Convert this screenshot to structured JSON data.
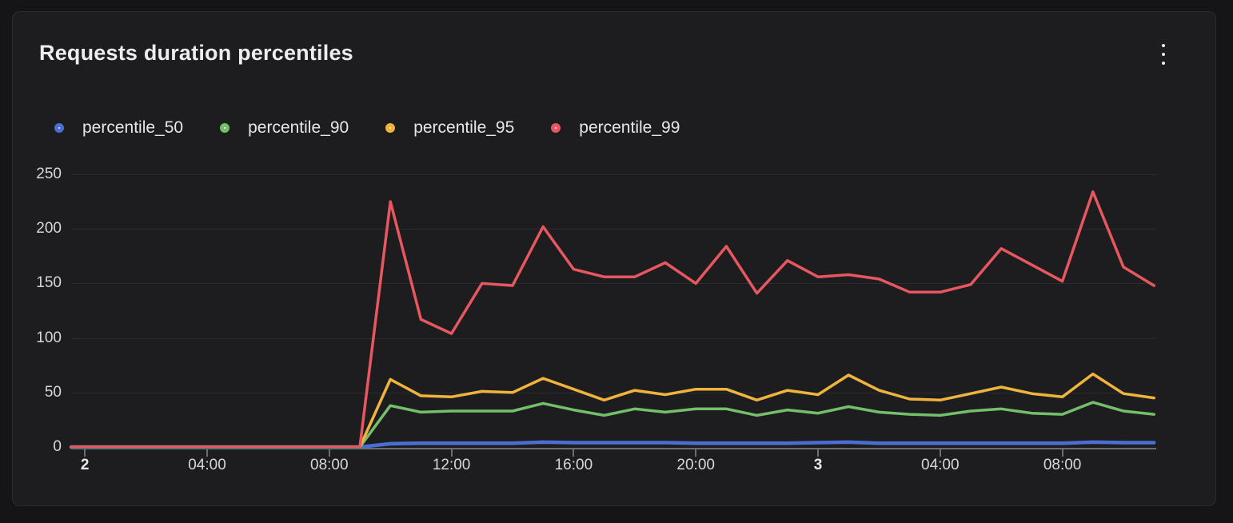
{
  "panel": {
    "title": "Requests duration percentiles",
    "menu_icon": "kebab-vertical-icon"
  },
  "legend": {
    "items": [
      {
        "label": "percentile_50",
        "color": "#4a6fd4"
      },
      {
        "label": "percentile_90",
        "color": "#74bf69"
      },
      {
        "label": "percentile_95",
        "color": "#f0b43c"
      },
      {
        "label": "percentile_99",
        "color": "#e8575f"
      }
    ]
  },
  "chart_data": {
    "type": "line",
    "title": "Requests duration percentiles",
    "legend_position": "top",
    "grid": "horizontal",
    "x_axis": {
      "unit": "time",
      "start": "day 2 00:00",
      "end": "day 3 11:00",
      "sample_interval_hours": 1,
      "ticks": [
        {
          "hour": 0,
          "label": "2",
          "bold": true
        },
        {
          "hour": 4,
          "label": "04:00",
          "bold": false
        },
        {
          "hour": 8,
          "label": "08:00",
          "bold": false
        },
        {
          "hour": 12,
          "label": "12:00",
          "bold": false
        },
        {
          "hour": 16,
          "label": "16:00",
          "bold": false
        },
        {
          "hour": 20,
          "label": "20:00",
          "bold": false
        },
        {
          "hour": 24,
          "label": "3",
          "bold": true
        },
        {
          "hour": 28,
          "label": "04:00",
          "bold": false
        },
        {
          "hour": 32,
          "label": "08:00",
          "bold": false
        }
      ]
    },
    "y_axis": {
      "min": 0,
      "max": 250,
      "ticks": [
        0,
        50,
        100,
        150,
        200,
        250
      ]
    },
    "series": [
      {
        "name": "percentile_50",
        "color": "#4a6fd4",
        "line_width": 4.5,
        "values": [
          0,
          0,
          0,
          0,
          0,
          0,
          0,
          0,
          0,
          0,
          3,
          3.5,
          3.5,
          3.5,
          3.5,
          4.5,
          4,
          4,
          4,
          4,
          3.5,
          3.5,
          3.5,
          3.5,
          4,
          4.5,
          3.5,
          3.5,
          3.5,
          3.5,
          3.5,
          3.5,
          3.5,
          4.5,
          4,
          4
        ]
      },
      {
        "name": "percentile_90",
        "color": "#74bf69",
        "line_width": 3.5,
        "values": [
          0,
          0,
          0,
          0,
          0,
          0,
          0,
          0,
          0,
          0,
          38,
          32,
          33,
          33,
          33,
          40,
          34,
          29,
          35,
          32,
          35,
          35,
          29,
          34,
          31,
          37,
          32,
          30,
          29,
          33,
          35,
          31,
          30,
          41,
          33,
          30
        ]
      },
      {
        "name": "percentile_95",
        "color": "#f0b43c",
        "line_width": 3.5,
        "values": [
          0,
          0,
          0,
          0,
          0,
          0,
          0,
          0,
          0,
          0,
          62,
          47,
          46,
          51,
          50,
          63,
          53,
          43,
          52,
          48,
          53,
          53,
          43,
          52,
          48,
          66,
          52,
          44,
          43,
          49,
          55,
          49,
          46,
          67,
          49,
          45
        ]
      },
      {
        "name": "percentile_99",
        "color": "#e8575f",
        "line_width": 3.5,
        "values": [
          0,
          0,
          0,
          0,
          0,
          0,
          0,
          0,
          0,
          0,
          225,
          117,
          104,
          150,
          148,
          202,
          163,
          156,
          156,
          169,
          150,
          184,
          141,
          171,
          156,
          158,
          154,
          142,
          142,
          149,
          182,
          167,
          152,
          234,
          165,
          148
        ]
      }
    ]
  }
}
